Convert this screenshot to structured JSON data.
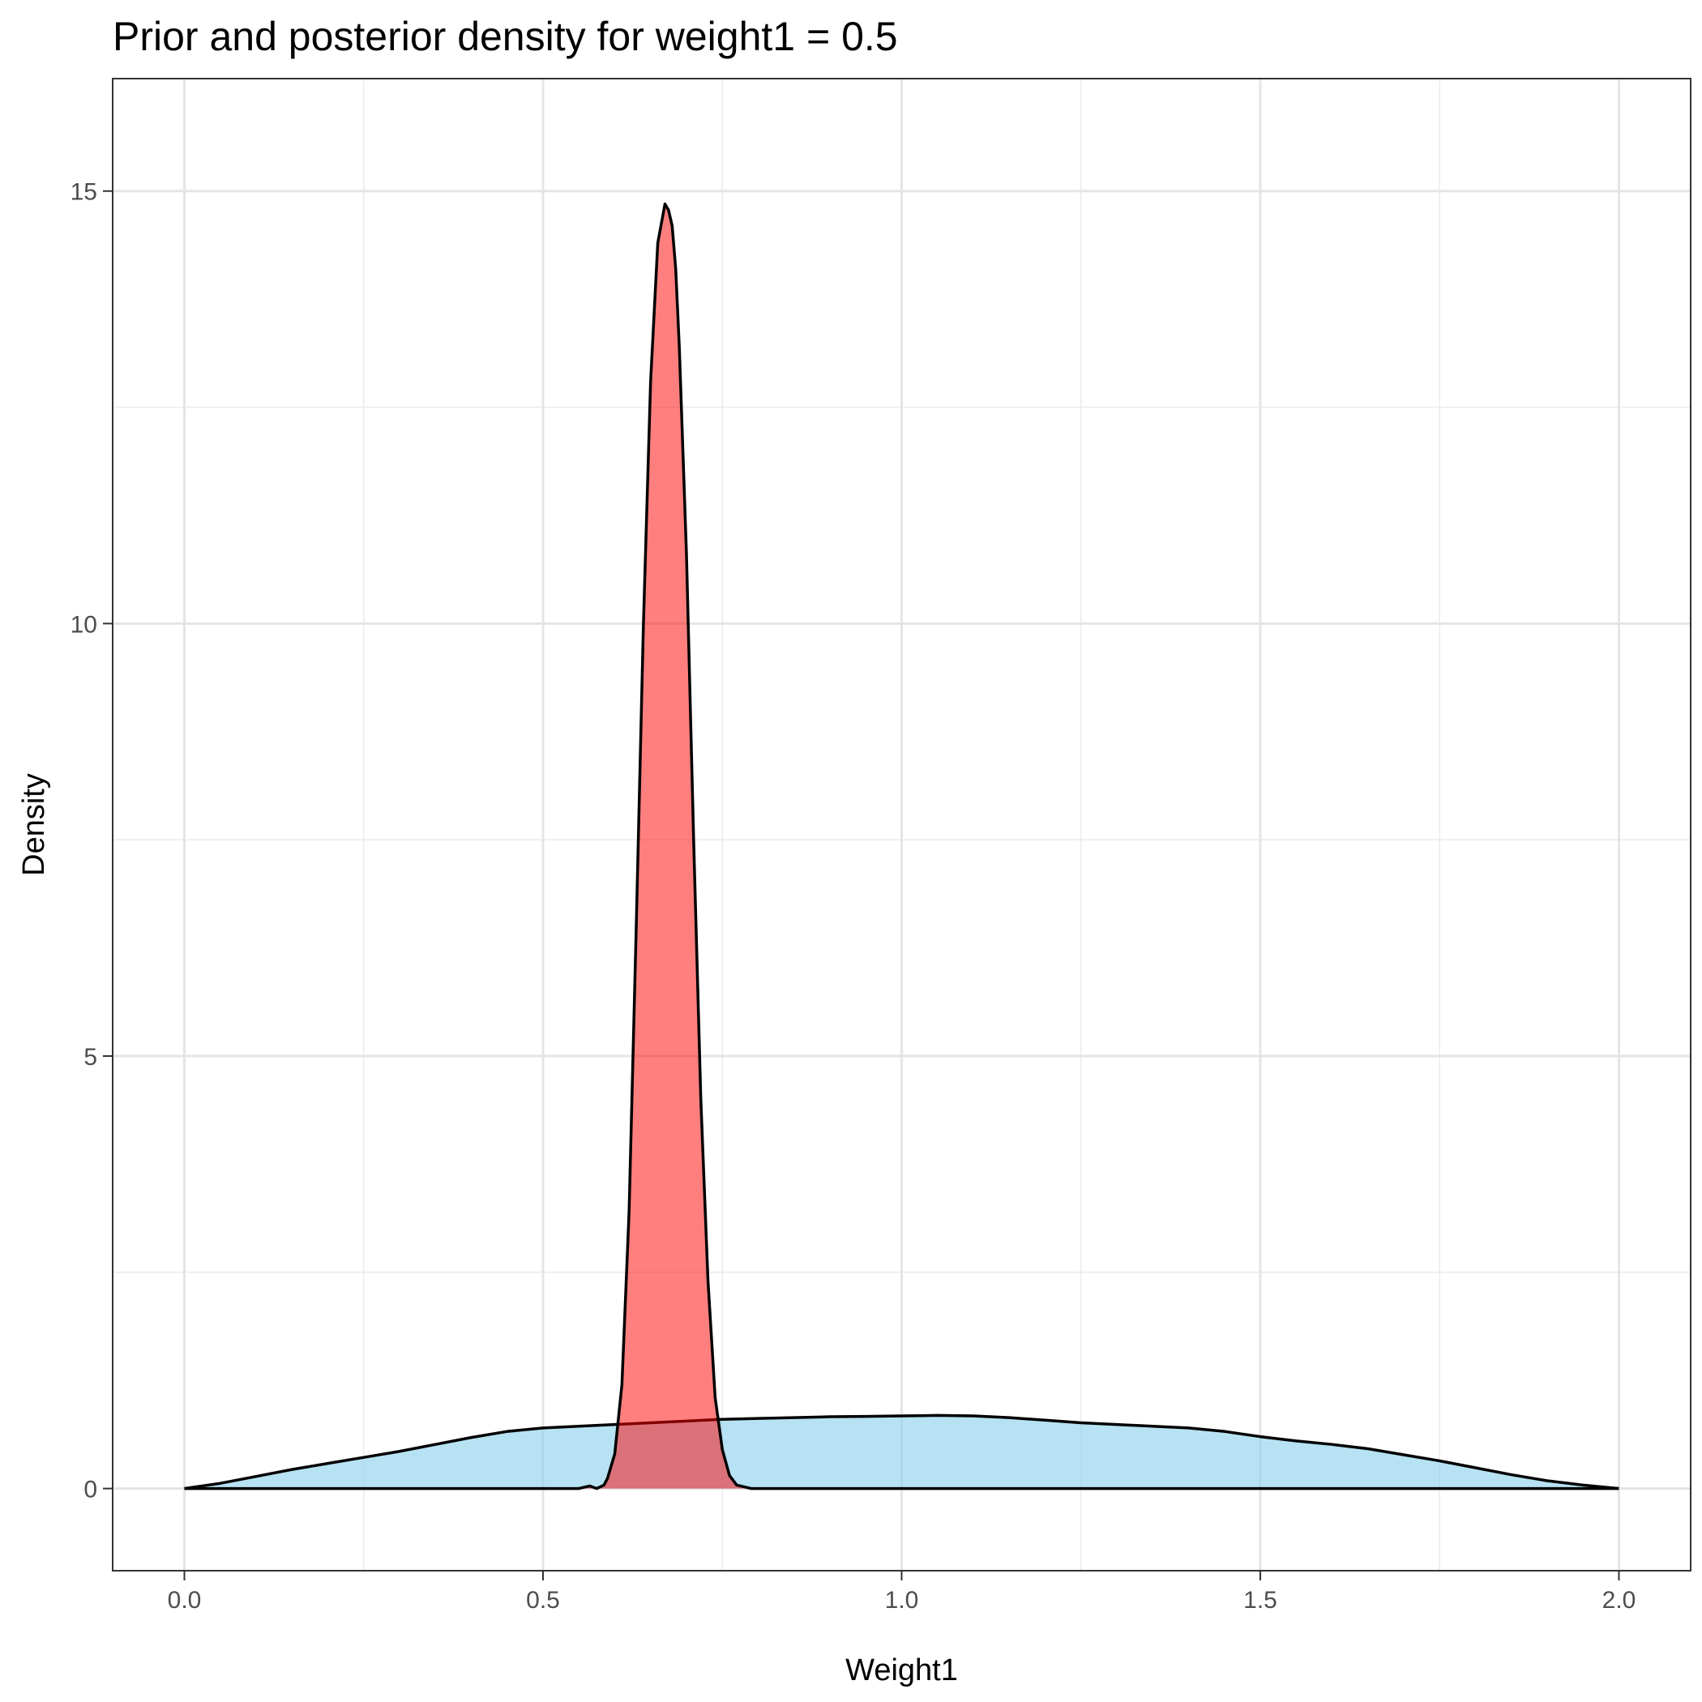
{
  "chart_data": {
    "type": "area",
    "title": "Prior and posterior density for weight1 = 0.5",
    "xlabel": "Weight1",
    "ylabel": "Density",
    "xlim": [
      -0.1,
      2.1
    ],
    "ylim": [
      -0.95,
      16.3
    ],
    "x_ticks": [
      0.0,
      0.5,
      1.0,
      1.5,
      2.0
    ],
    "x_tick_labels": [
      "0.0",
      "0.5",
      "1.0",
      "1.5",
      "2.0"
    ],
    "y_ticks": [
      0,
      5,
      10,
      15
    ],
    "y_tick_labels": [
      "0",
      "5",
      "10",
      "15"
    ],
    "grid": true,
    "series": [
      {
        "name": "prior",
        "fill": "#87ceeb",
        "fill_opacity": 0.6,
        "line_color": "#000000",
        "x": [
          0.0,
          0.05,
          0.1,
          0.15,
          0.2,
          0.25,
          0.3,
          0.35,
          0.4,
          0.45,
          0.5,
          0.55,
          0.6,
          0.65,
          0.7,
          0.75,
          0.8,
          0.85,
          0.9,
          0.95,
          1.0,
          1.05,
          1.1,
          1.15,
          1.2,
          1.25,
          1.3,
          1.35,
          1.4,
          1.45,
          1.5,
          1.55,
          1.6,
          1.65,
          1.7,
          1.75,
          1.8,
          1.85,
          1.9,
          1.95,
          2.0
        ],
        "y": [
          0.0,
          0.06,
          0.14,
          0.22,
          0.29,
          0.36,
          0.43,
          0.51,
          0.59,
          0.66,
          0.7,
          0.72,
          0.74,
          0.76,
          0.78,
          0.8,
          0.81,
          0.82,
          0.83,
          0.834,
          0.84,
          0.845,
          0.84,
          0.82,
          0.79,
          0.76,
          0.74,
          0.72,
          0.7,
          0.66,
          0.6,
          0.55,
          0.51,
          0.46,
          0.39,
          0.32,
          0.24,
          0.16,
          0.09,
          0.04,
          0.0
        ]
      },
      {
        "name": "posterior",
        "fill": "#ff0000",
        "fill_opacity": 0.5,
        "line_color": "#000000",
        "x": [
          0.0,
          0.5,
          0.55,
          0.565,
          0.575,
          0.585,
          0.59,
          0.6,
          0.61,
          0.62,
          0.63,
          0.64,
          0.65,
          0.66,
          0.67,
          0.675,
          0.68,
          0.685,
          0.69,
          0.7,
          0.71,
          0.72,
          0.73,
          0.74,
          0.75,
          0.76,
          0.77,
          0.78,
          0.79,
          0.8,
          2.0
        ],
        "y": [
          0.0,
          0.0,
          0.0,
          0.03,
          0.0,
          0.04,
          0.12,
          0.4,
          1.2,
          3.2,
          6.5,
          10.0,
          12.8,
          14.4,
          14.85,
          14.78,
          14.6,
          14.1,
          13.2,
          10.8,
          7.5,
          4.5,
          2.4,
          1.05,
          0.45,
          0.15,
          0.04,
          0.02,
          0.0,
          0.0,
          0.0
        ]
      }
    ]
  }
}
